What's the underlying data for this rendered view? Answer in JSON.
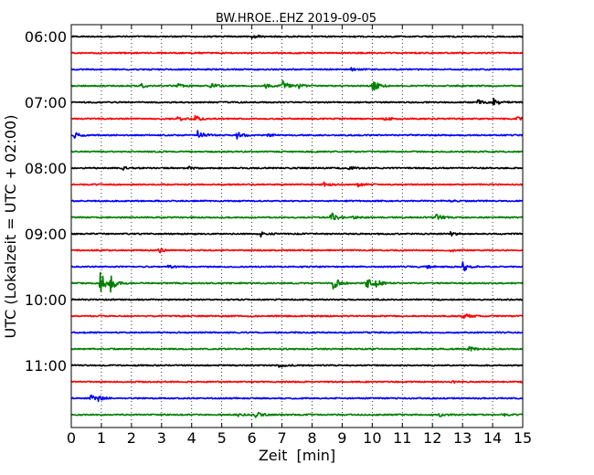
{
  "chart_data": {
    "type": "line",
    "title": "BW.HROE..EHZ 2019-09-05",
    "xlabel": "Zeit  [min]",
    "ylabel": "UTC (Lokalzeit = UTC + 02:00)",
    "xlim": [
      0,
      15
    ],
    "x_ticks": [
      0,
      1,
      2,
      3,
      4,
      5,
      6,
      7,
      8,
      9,
      10,
      11,
      12,
      13,
      14,
      15
    ],
    "y_tick_labels": [
      "06:00",
      "07:00",
      "08:00",
      "09:00",
      "10:00",
      "11:00"
    ],
    "grid": "vertical-dotted",
    "line_interval_min": 15,
    "series_colors": [
      "#000000",
      "#ff0000",
      "#0000ff",
      "#008000"
    ],
    "traces": [
      {
        "start": "06:00",
        "color": "#000000",
        "events": [
          {
            "t": 6.0,
            "amp": 0.5
          }
        ]
      },
      {
        "start": "06:15",
        "color": "#ff0000",
        "events": []
      },
      {
        "start": "06:30",
        "color": "#0000ff",
        "events": [
          {
            "t": 9.3,
            "amp": 0.4
          }
        ]
      },
      {
        "start": "06:45",
        "color": "#008000",
        "events": [
          {
            "t": 2.3,
            "amp": 0.5
          },
          {
            "t": 3.5,
            "amp": 0.5
          },
          {
            "t": 4.6,
            "amp": 0.6
          },
          {
            "t": 6.4,
            "amp": 0.6
          },
          {
            "t": 7.0,
            "amp": 1.2
          },
          {
            "t": 7.5,
            "amp": 0.6
          },
          {
            "t": 10.0,
            "amp": 1.4
          }
        ]
      },
      {
        "start": "07:00",
        "color": "#000000",
        "events": [
          {
            "t": 13.5,
            "amp": 0.5
          },
          {
            "t": 14.0,
            "amp": 0.9
          }
        ]
      },
      {
        "start": "07:15",
        "color": "#ff0000",
        "events": [
          {
            "t": 3.5,
            "amp": 0.6
          },
          {
            "t": 4.1,
            "amp": 0.7
          },
          {
            "t": 10.4,
            "amp": 0.5
          },
          {
            "t": 14.8,
            "amp": 0.5
          }
        ]
      },
      {
        "start": "07:30",
        "color": "#0000ff",
        "events": [
          {
            "t": 0.1,
            "amp": 0.6
          },
          {
            "t": 4.2,
            "amp": 1.1
          },
          {
            "t": 5.5,
            "amp": 0.9
          },
          {
            "t": 6.5,
            "amp": 0.3
          }
        ]
      },
      {
        "start": "07:45",
        "color": "#008000",
        "events": []
      },
      {
        "start": "08:00",
        "color": "#000000",
        "events": [
          {
            "t": 1.7,
            "amp": 0.4
          },
          {
            "t": 3.9,
            "amp": 0.4
          },
          {
            "t": 9.2,
            "amp": 0.5
          }
        ]
      },
      {
        "start": "08:15",
        "color": "#ff0000",
        "events": [
          {
            "t": 8.4,
            "amp": 0.4
          },
          {
            "t": 9.5,
            "amp": 0.5
          }
        ]
      },
      {
        "start": "08:30",
        "color": "#0000ff",
        "events": [
          {
            "t": 12.6,
            "amp": 0.3
          }
        ]
      },
      {
        "start": "08:45",
        "color": "#008000",
        "events": [
          {
            "t": 8.6,
            "amp": 1.3
          },
          {
            "t": 9.3,
            "amp": 0.5
          },
          {
            "t": 12.1,
            "amp": 0.7
          }
        ]
      },
      {
        "start": "09:00",
        "color": "#000000",
        "events": [
          {
            "t": 6.3,
            "amp": 0.6
          },
          {
            "t": 12.6,
            "amp": 0.4
          }
        ]
      },
      {
        "start": "09:15",
        "color": "#ff0000",
        "events": [
          {
            "t": 2.9,
            "amp": 0.6
          },
          {
            "t": 12.6,
            "amp": 0.4
          }
        ]
      },
      {
        "start": "09:30",
        "color": "#0000ff",
        "events": [
          {
            "t": 3.2,
            "amp": 0.3
          },
          {
            "t": 11.8,
            "amp": 0.3
          },
          {
            "t": 13.0,
            "amp": 1.1
          }
        ]
      },
      {
        "start": "09:45",
        "color": "#008000",
        "events": [
          {
            "t": 0.95,
            "amp": 3.0
          },
          {
            "t": 1.3,
            "amp": 1.6
          },
          {
            "t": 8.7,
            "amp": 1.4
          },
          {
            "t": 9.8,
            "amp": 1.9
          },
          {
            "t": 10.1,
            "amp": 0.8
          }
        ]
      },
      {
        "start": "10:00",
        "color": "#000000",
        "events": []
      },
      {
        "start": "10:15",
        "color": "#ff0000",
        "events": [
          {
            "t": 13.0,
            "amp": 0.9
          }
        ]
      },
      {
        "start": "10:30",
        "color": "#0000ff",
        "events": []
      },
      {
        "start": "10:45",
        "color": "#008000",
        "events": [
          {
            "t": 13.2,
            "amp": 0.5
          }
        ]
      },
      {
        "start": "11:00",
        "color": "#000000",
        "events": [
          {
            "t": 6.9,
            "amp": 0.4
          }
        ]
      },
      {
        "start": "11:15",
        "color": "#ff0000",
        "events": [
          {
            "t": 12.6,
            "amp": 0.3
          }
        ]
      },
      {
        "start": "11:30",
        "color": "#0000ff",
        "events": [
          {
            "t": 0.6,
            "amp": 0.9
          },
          {
            "t": 0.9,
            "amp": 0.4
          }
        ]
      },
      {
        "start": "11:45",
        "color": "#008000",
        "events": [
          {
            "t": 5.5,
            "amp": 0.4
          },
          {
            "t": 6.1,
            "amp": 0.7
          },
          {
            "t": 12.2,
            "amp": 0.4
          },
          {
            "t": 14.3,
            "amp": 0.3
          }
        ]
      }
    ]
  }
}
